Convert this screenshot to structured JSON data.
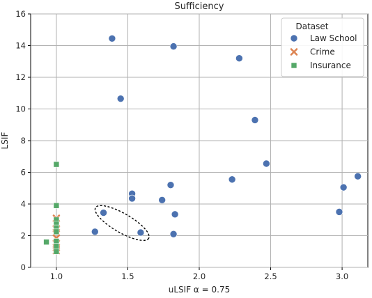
{
  "chart_data": {
    "type": "scatter",
    "title": "Sufficiency",
    "xlabel": "uLSIF α = 0.75",
    "ylabel": "LSIF",
    "xlim": [
      0.82,
      3.18
    ],
    "ylim": [
      0,
      16
    ],
    "xticks": [
      "1.0",
      "1.5",
      "2.0",
      "2.5",
      "3.0"
    ],
    "yticks": [
      "0",
      "2",
      "4",
      "6",
      "8",
      "10",
      "12",
      "14",
      "16"
    ],
    "grid": true,
    "legend": {
      "title": "Dataset",
      "placement": "top-right"
    },
    "series": [
      {
        "name": "Law School",
        "marker": "circle",
        "color": "#4c72b0",
        "points": [
          [
            1.39,
            14.45
          ],
          [
            1.82,
            13.95
          ],
          [
            2.28,
            13.2
          ],
          [
            1.45,
            10.65
          ],
          [
            2.39,
            9.3
          ],
          [
            2.47,
            6.55
          ],
          [
            3.11,
            5.75
          ],
          [
            3.01,
            5.05
          ],
          [
            2.23,
            5.55
          ],
          [
            1.8,
            5.2
          ],
          [
            1.53,
            4.65
          ],
          [
            1.53,
            4.35
          ],
          [
            1.74,
            4.25
          ],
          [
            1.33,
            3.45
          ],
          [
            1.83,
            3.35
          ],
          [
            2.98,
            3.5
          ],
          [
            1.27,
            2.25
          ],
          [
            1.59,
            2.2
          ],
          [
            1.82,
            2.1
          ]
        ]
      },
      {
        "name": "Crime",
        "marker": "x",
        "color": "#dd8452",
        "points": [
          [
            1.0,
            3.1
          ],
          [
            1.0,
            2.75
          ],
          [
            1.0,
            2.45
          ],
          [
            1.0,
            2.2
          ],
          [
            1.0,
            1.85
          ],
          [
            1.0,
            1.5
          ],
          [
            1.0,
            1.25
          ],
          [
            1.0,
            1.05
          ]
        ]
      },
      {
        "name": "Insurance",
        "marker": "square",
        "color": "#55a868",
        "points": [
          [
            1.0,
            6.5
          ],
          [
            1.0,
            3.9
          ],
          [
            1.0,
            3.0
          ],
          [
            1.0,
            2.75
          ],
          [
            1.0,
            2.5
          ],
          [
            1.0,
            2.25
          ],
          [
            1.0,
            1.65
          ],
          [
            0.93,
            1.6
          ],
          [
            1.0,
            1.35
          ],
          [
            1.0,
            1.0
          ]
        ]
      }
    ],
    "annotations": [
      {
        "shape": "dashed-ellipse",
        "center": [
          1.46,
          2.8
        ],
        "x_radius": 0.215,
        "y_radius": 0.6,
        "rotation_deg": 30
      }
    ]
  }
}
